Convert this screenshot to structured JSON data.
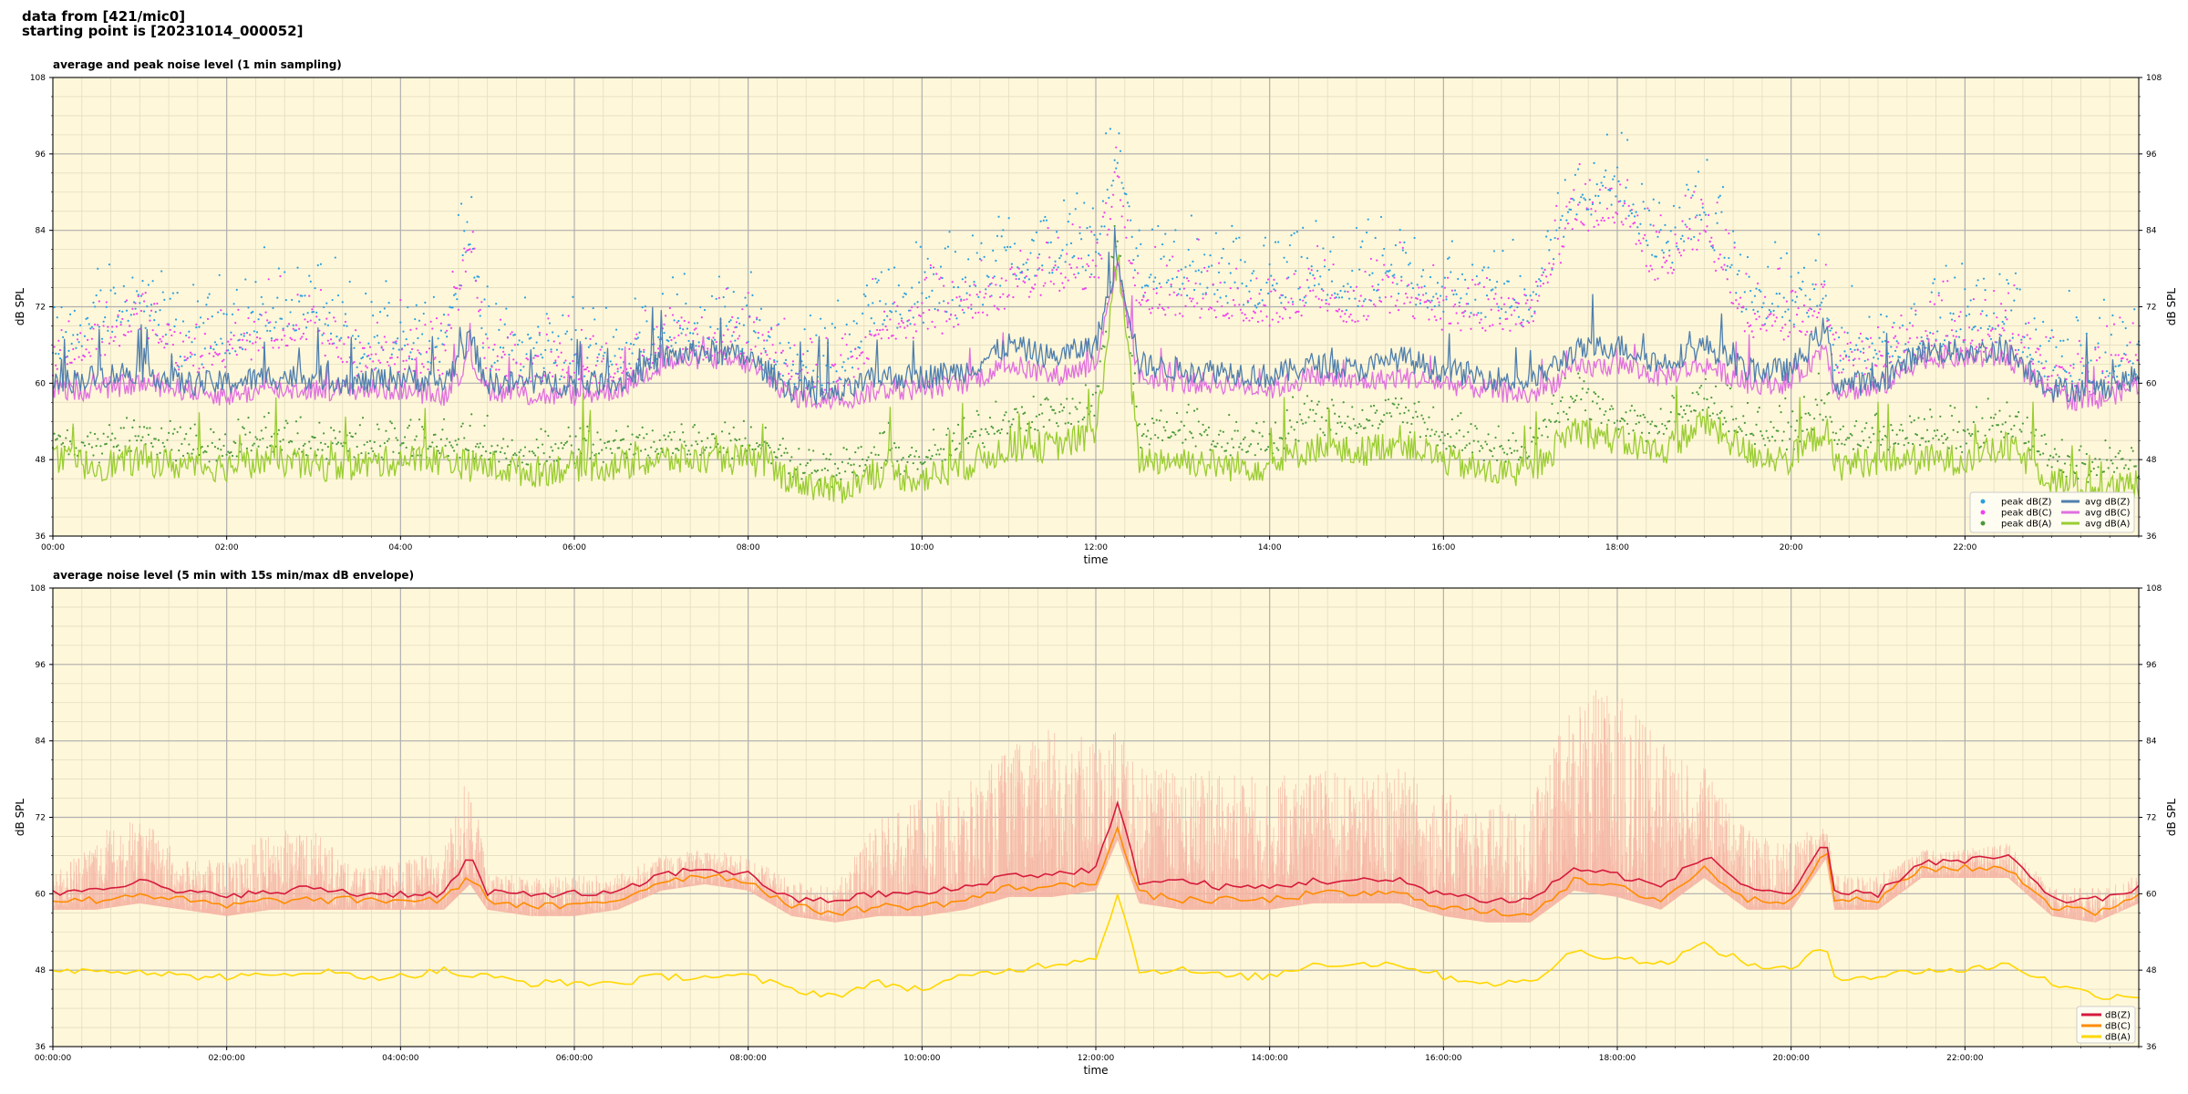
{
  "header": {
    "line1": "data from [421/mic0]",
    "line2": "starting point is [20231014_000052]"
  },
  "colors": {
    "plot_bg": "#fff7d9",
    "grid_major": "#b0b0b0",
    "grid_minor": "#e3ddc2",
    "z_avg": "#4f7fae",
    "c_avg": "#e070e0",
    "a_avg": "#9acd32",
    "z_peak": "#2aa0e0",
    "c_peak": "#f040f0",
    "a_peak": "#4a9a3a",
    "z5": "#d61a3c",
    "c5": "#ff8c00",
    "a5": "#ffd700",
    "envelope": "#f5b5a5"
  },
  "chart_data": [
    {
      "type": "line",
      "title": "average and peak noise level (1 min sampling)",
      "xlabel": "time",
      "ylabel": "dB SPL",
      "ylim": [
        36,
        108
      ],
      "yticks": [
        "36",
        "48",
        "60",
        "72",
        "84",
        "96",
        "108"
      ],
      "xlim_hours": [
        0,
        24
      ],
      "xticks": [
        "00:00",
        "02:00",
        "04:00",
        "06:00",
        "08:00",
        "10:00",
        "12:00",
        "14:00",
        "16:00",
        "18:00",
        "20:00",
        "22:00"
      ],
      "grid": true,
      "legend_position": "bottom-right",
      "legend": [
        "peak dB(Z)",
        "peak dB(C)",
        "peak dB(A)",
        "avg dB(Z)",
        "avg dB(C)",
        "avg dB(A)"
      ],
      "x_hours": [
        0,
        0.5,
        1,
        1.5,
        2,
        2.5,
        3,
        3.5,
        4,
        4.5,
        4.8,
        5,
        5.5,
        6,
        6.5,
        7,
        7.5,
        8,
        8.5,
        9,
        9.5,
        10,
        10.5,
        11,
        11.5,
        12,
        12.25,
        12.5,
        13,
        13.5,
        14,
        14.5,
        15,
        15.5,
        16,
        16.5,
        17,
        17.5,
        18,
        18.5,
        19,
        19.5,
        20,
        20.4,
        20.5,
        21,
        21.5,
        22,
        22.5,
        23,
        23.5,
        24
      ],
      "series": [
        {
          "name": "avg dB(Z)",
          "values": [
            60,
            61,
            62,
            60,
            60,
            61,
            61,
            60,
            61,
            60,
            67,
            60,
            60,
            60,
            60,
            64,
            65,
            64,
            59,
            58,
            61,
            61,
            62,
            66,
            64,
            66,
            80,
            63,
            62,
            62,
            61,
            63,
            62,
            64,
            62,
            61,
            60,
            65,
            66,
            63,
            66,
            62,
            62,
            69,
            60,
            60,
            65,
            65,
            65,
            59,
            59,
            61
          ]
        },
        {
          "name": "avg dB(C)",
          "values": [
            59,
            59,
            60,
            59,
            58,
            59,
            59,
            59,
            59,
            58,
            64,
            59,
            58,
            58,
            59,
            63,
            64,
            63,
            58,
            57,
            59,
            59,
            60,
            63,
            61,
            63,
            78,
            61,
            60,
            60,
            59,
            61,
            60,
            61,
            60,
            59,
            58,
            62,
            63,
            61,
            63,
            60,
            60,
            66,
            59,
            59,
            64,
            64,
            64,
            58,
            57,
            60
          ]
        },
        {
          "name": "avg dB(A)",
          "values": [
            48,
            47,
            48,
            47,
            47,
            48,
            47,
            47,
            48,
            48,
            47,
            47,
            46,
            47,
            47,
            48,
            48,
            48,
            45,
            43,
            46,
            45,
            47,
            50,
            50,
            52,
            80,
            48,
            48,
            47,
            47,
            50,
            49,
            51,
            48,
            46,
            46,
            53,
            51,
            49,
            54,
            49,
            48,
            53,
            47,
            48,
            48,
            48,
            50,
            45,
            43,
            44
          ]
        },
        {
          "name": "peak dB(Z)",
          "values": [
            63,
            68,
            72,
            64,
            67,
            69,
            71,
            64,
            66,
            66,
            84,
            63,
            64,
            63,
            63,
            67,
            67,
            67,
            62,
            61,
            71,
            72,
            73,
            78,
            79,
            80,
            95,
            76,
            76,
            74,
            73,
            75,
            73,
            76,
            73,
            72,
            72,
            88,
            90,
            80,
            86,
            72,
            71,
            72,
            64,
            64,
            67,
            68,
            69,
            62,
            61,
            64
          ]
        },
        {
          "name": "peak dB(C)",
          "values": [
            62,
            66,
            70,
            63,
            65,
            67,
            68,
            63,
            64,
            64,
            82,
            62,
            62,
            62,
            62,
            66,
            66,
            66,
            61,
            60,
            68,
            70,
            71,
            75,
            76,
            77,
            92,
            73,
            73,
            72,
            71,
            73,
            71,
            74,
            71,
            70,
            70,
            85,
            87,
            77,
            84,
            70,
            69,
            71,
            63,
            63,
            66,
            67,
            68,
            61,
            60,
            63
          ]
        },
        {
          "name": "peak dB(A)",
          "values": [
            51,
            50,
            52,
            50,
            50,
            52,
            51,
            50,
            51,
            51,
            50,
            50,
            49,
            50,
            50,
            51,
            51,
            51,
            48,
            46,
            49,
            48,
            51,
            55,
            55,
            57,
            84,
            52,
            53,
            51,
            51,
            55,
            54,
            56,
            52,
            50,
            50,
            58,
            55,
            53,
            58,
            53,
            52,
            57,
            51,
            52,
            52,
            52,
            54,
            48,
            47,
            48
          ]
        }
      ]
    },
    {
      "type": "line",
      "title": "average noise level (5 min with 15s min/max dB envelope)",
      "xlabel": "time",
      "ylabel": "dB SPL",
      "ylim": [
        36,
        108
      ],
      "yticks": [
        "36",
        "48",
        "60",
        "72",
        "84",
        "96",
        "108"
      ],
      "xlim_hours": [
        0,
        24
      ],
      "xticks": [
        "00:00:00",
        "02:00:00",
        "04:00:00",
        "06:00:00",
        "08:00:00",
        "10:00:00",
        "12:00:00",
        "14:00:00",
        "16:00:00",
        "18:00:00",
        "20:00:00",
        "22:00:00"
      ],
      "grid": true,
      "legend_position": "bottom-right",
      "legend": [
        "dB(Z)",
        "dB(C)",
        "dB(A)"
      ],
      "x_hours": [
        0,
        0.5,
        1,
        1.5,
        2,
        2.5,
        3,
        3.5,
        4,
        4.5,
        4.8,
        5,
        5.5,
        6,
        6.5,
        7,
        7.5,
        8,
        8.5,
        9,
        9.5,
        10,
        10.5,
        11,
        11.5,
        12,
        12.25,
        12.5,
        13,
        13.5,
        14,
        14.5,
        15,
        15.5,
        16,
        16.5,
        17,
        17.5,
        18,
        18.5,
        19,
        19.5,
        20,
        20.4,
        20.5,
        21,
        21.5,
        22,
        22.5,
        23,
        23.5,
        24
      ],
      "series": [
        {
          "name": "dB(Z)",
          "values": [
            60,
            61,
            62,
            60,
            60,
            60,
            61,
            60,
            60,
            60,
            66,
            60,
            60,
            60,
            60,
            63,
            64,
            63,
            59,
            59,
            60,
            60,
            61,
            63,
            63,
            64,
            74,
            62,
            62,
            61,
            61,
            62,
            62,
            62,
            60,
            59,
            59,
            64,
            63,
            61,
            66,
            61,
            60,
            68,
            60,
            60,
            65,
            65,
            66,
            59,
            59,
            61
          ]
        },
        {
          "name": "dB(C)",
          "values": [
            59,
            59,
            60,
            59,
            58,
            59,
            59,
            59,
            59,
            59,
            63,
            59,
            58,
            58,
            59,
            62,
            63,
            62,
            58,
            57,
            58,
            58,
            59,
            61,
            61,
            62,
            70,
            60,
            59,
            59,
            59,
            60,
            60,
            60,
            58,
            57,
            57,
            62,
            61,
            59,
            64,
            59,
            59,
            67,
            59,
            59,
            64,
            64,
            64,
            58,
            57,
            60
          ]
        },
        {
          "name": "dB(A)",
          "values": [
            48,
            48,
            48,
            47,
            47,
            47,
            48,
            47,
            47,
            48,
            47,
            47,
            46,
            46,
            46,
            47,
            47,
            47,
            45,
            44,
            46,
            45,
            47,
            48,
            49,
            50,
            60,
            48,
            48,
            47,
            47,
            49,
            49,
            49,
            47,
            46,
            46,
            51,
            50,
            49,
            52,
            49,
            48,
            52,
            47,
            47,
            48,
            48,
            49,
            46,
            44,
            44
          ]
        },
        {
          "name": "envelope max",
          "values": [
            63,
            70,
            72,
            66,
            65,
            70,
            70,
            64,
            65,
            67,
            80,
            63,
            63,
            63,
            63,
            66,
            67,
            66,
            62,
            61,
            72,
            75,
            77,
            83,
            86,
            84,
            86,
            80,
            80,
            80,
            78,
            80,
            78,
            80,
            76,
            74,
            74,
            92,
            92,
            84,
            80,
            70,
            68,
            72,
            63,
            63,
            67,
            67,
            68,
            61,
            61,
            63
          ]
        }
      ]
    }
  ]
}
